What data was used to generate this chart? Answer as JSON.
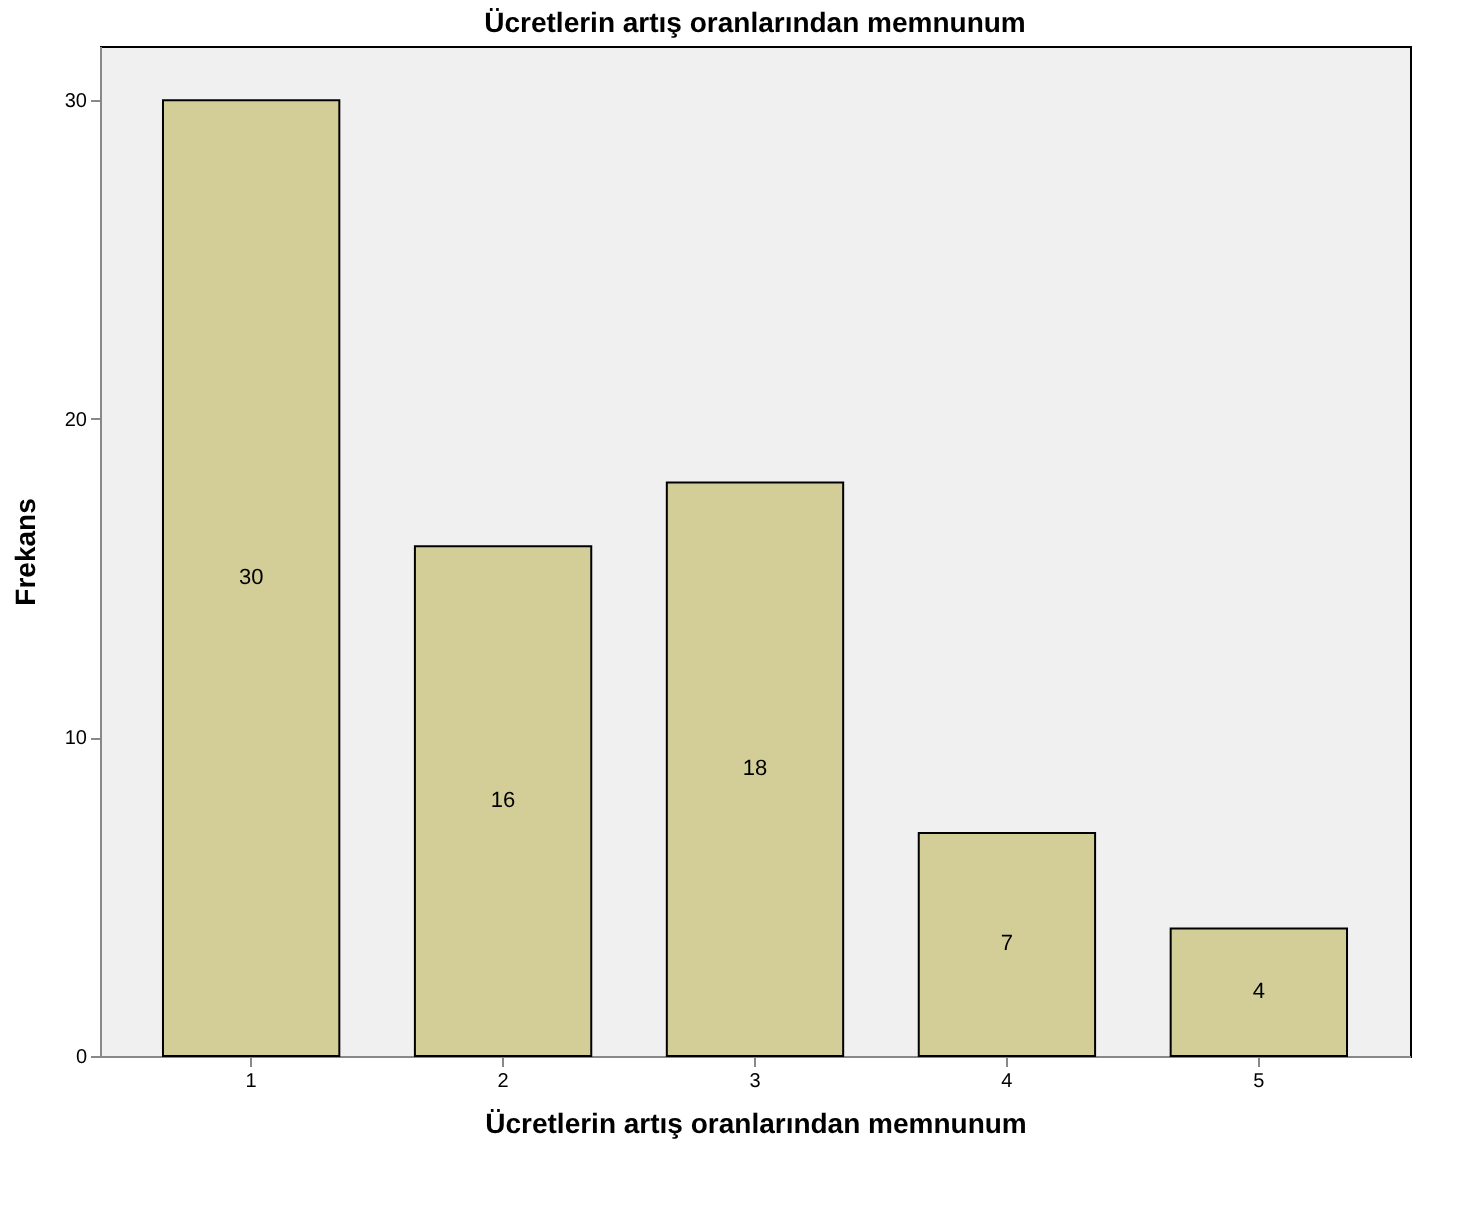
{
  "chart_data": {
    "type": "bar",
    "title": "Ücretlerin artış oranlarından memnunum",
    "xlabel": "Ücretlerin artış oranlarından memnunum",
    "ylabel": "Frekans",
    "categories": [
      "1",
      "2",
      "3",
      "4",
      "5"
    ],
    "values": [
      30,
      16,
      18,
      7,
      4
    ],
    "color": "#d3ce97",
    "ylim": [
      0,
      31.7
    ],
    "yticks": [
      0,
      10,
      20,
      30
    ],
    "grid": false,
    "data_labels": true
  }
}
